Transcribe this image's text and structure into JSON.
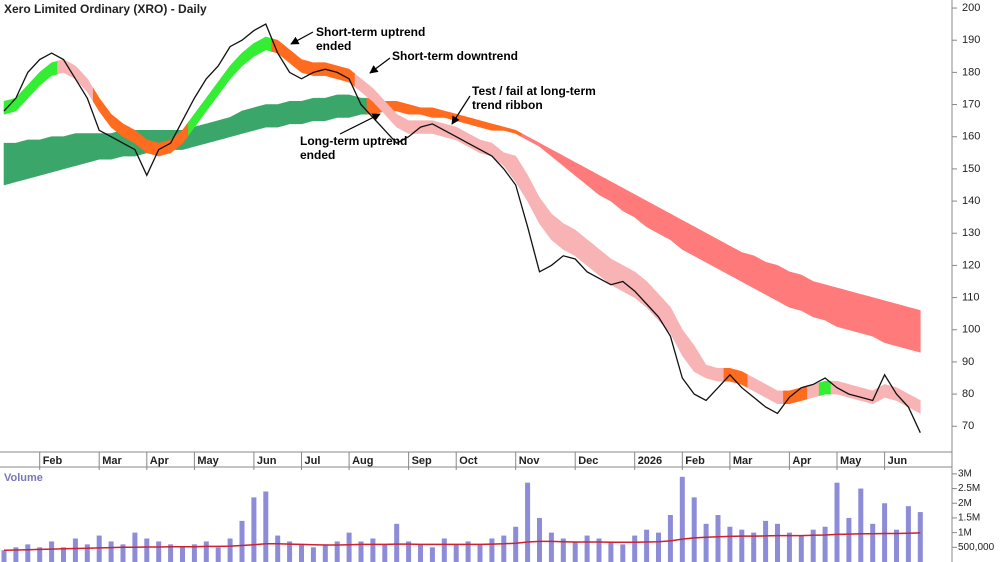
{
  "chart_data": {
    "type": "line",
    "title": "Xero Limited Ordinary (XRO) - Daily",
    "categories": [
      null,
      null,
      null,
      "Feb",
      null,
      null,
      null,
      null,
      "Mar",
      null,
      null,
      null,
      "Apr",
      null,
      null,
      null,
      "May",
      null,
      null,
      null,
      null,
      "Jun",
      null,
      null,
      null,
      "Jul",
      null,
      null,
      null,
      "Aug",
      null,
      null,
      null,
      null,
      "Sep",
      null,
      null,
      null,
      "Oct",
      null,
      null,
      null,
      null,
      "Nov",
      null,
      null,
      null,
      null,
      "Dec",
      null,
      null,
      null,
      null,
      "2026",
      null,
      null,
      null,
      "Feb",
      null,
      null,
      null,
      "Mar",
      null,
      null,
      null,
      null,
      "Apr",
      null,
      null,
      null,
      "May",
      null,
      null,
      null,
      "Jun",
      null,
      null,
      null
    ],
    "price": {
      "color": "#111111",
      "values": [
        168,
        172,
        180,
        184,
        186,
        184,
        178,
        172,
        162,
        160,
        158,
        156,
        148,
        156,
        158,
        165,
        172,
        178,
        182,
        188,
        190,
        193,
        195,
        186,
        180,
        178,
        180,
        181,
        180,
        178,
        170,
        166,
        162,
        158,
        160,
        163,
        164,
        162,
        160,
        158,
        156,
        154,
        150,
        145,
        132,
        118,
        120,
        123,
        122,
        118,
        116,
        114,
        115,
        112,
        108,
        104,
        98,
        85,
        80,
        78,
        82,
        86,
        82,
        79,
        76,
        74,
        79,
        82,
        83,
        85,
        82,
        80,
        79,
        78,
        86,
        80,
        76,
        68
      ]
    },
    "ribbons": [
      {
        "upper": [
          158,
          158,
          159,
          159,
          160,
          160,
          161,
          161,
          161,
          161,
          162,
          162,
          162,
          162,
          162,
          162,
          163,
          164,
          165,
          166,
          168,
          169,
          170,
          170,
          171,
          171,
          172,
          172,
          173,
          173,
          172,
          172,
          171,
          171,
          170,
          169,
          169,
          168,
          167,
          166,
          165,
          164,
          163,
          162,
          160,
          158,
          156,
          154,
          152,
          150,
          148,
          146,
          144,
          142,
          140,
          138,
          136,
          134,
          132,
          130,
          128,
          126,
          124,
          123,
          121,
          120,
          118,
          117,
          115,
          114,
          113,
          112,
          111,
          110,
          109,
          108,
          107,
          106
        ],
        "lower": [
          145,
          146,
          147,
          148,
          149,
          150,
          151,
          152,
          153,
          153,
          154,
          154,
          155,
          155,
          156,
          156,
          157,
          158,
          159,
          160,
          161,
          162,
          163,
          163,
          164,
          164,
          165,
          165,
          166,
          166,
          167,
          167,
          168,
          168,
          167,
          167,
          166,
          166,
          165,
          164,
          163,
          162,
          162,
          161,
          159,
          157,
          154,
          151,
          148,
          145,
          142,
          140,
          137,
          135,
          132,
          130,
          128,
          125,
          123,
          121,
          119,
          117,
          115,
          113,
          111,
          109,
          107,
          106,
          104,
          103,
          101,
          100,
          99,
          98,
          96,
          95,
          94,
          93
        ],
        "colors": [
          "#3aa66a",
          "#3aa66a",
          "#3aa66a",
          "#3aa66a",
          "#3aa66a",
          "#3aa66a",
          "#3aa66a",
          "#3aa66a",
          "#3aa66a",
          "#3aa66a",
          "#3aa66a",
          "#3aa66a",
          "#3aa66a",
          "#3aa66a",
          "#3aa66a",
          "#3aa66a",
          "#3aa66a",
          "#3aa66a",
          "#3aa66a",
          "#3aa66a",
          "#3aa66a",
          "#3aa66a",
          "#3aa66a",
          "#3aa66a",
          "#3aa66a",
          "#3aa66a",
          "#3aa66a",
          "#3aa66a",
          "#3aa66a",
          "#3aa66a",
          "#3aa66a",
          "#ff6b1f",
          "#ff6b1f",
          "#ff6b1f",
          "#ff6b1f",
          "#ff6b1f",
          "#ff6b1f",
          "#ff6b1f",
          "#ff6b1f",
          "#ff6b1f",
          "#ff6b1f",
          "#ff6b1f",
          "#ff6b1f",
          "#ff6b1f",
          "#ff7b7b",
          "#ff7b7b",
          "#ff7b7b",
          "#ff7b7b",
          "#ff7b7b",
          "#ff7b7b",
          "#ff7b7b",
          "#ff7b7b",
          "#ff7b7b",
          "#ff7b7b",
          "#ff7b7b",
          "#ff7b7b",
          "#ff7b7b",
          "#ff7b7b",
          "#ff7b7b",
          "#ff7b7b",
          "#ff7b7b",
          "#ff7b7b",
          "#ff7b7b",
          "#ff7b7b",
          "#ff7b7b",
          "#ff7b7b",
          "#ff7b7b",
          "#ff7b7b",
          "#ff7b7b",
          "#ff7b7b",
          "#ff7b7b",
          "#ff7b7b",
          "#ff7b7b",
          "#ff7b7b",
          "#ff7b7b",
          "#ff7b7b",
          "#ff7b7b",
          "#ff7b7b"
        ]
      },
      {
        "upper": [
          171,
          172,
          176,
          180,
          183,
          184,
          182,
          178,
          172,
          167,
          164,
          162,
          159,
          158,
          159,
          162,
          167,
          172,
          177,
          182,
          186,
          189,
          191,
          190,
          187,
          184,
          183,
          183,
          182,
          181,
          178,
          175,
          171,
          167,
          165,
          165,
          165,
          164,
          163,
          161,
          159,
          158,
          155,
          154,
          148,
          141,
          136,
          133,
          131,
          128,
          125,
          122,
          120,
          118,
          115,
          111,
          107,
          100,
          95,
          89,
          88,
          88,
          87,
          85,
          83,
          81,
          81,
          82,
          83,
          84,
          84,
          83,
          82,
          81,
          83,
          82,
          80,
          78
        ],
        "lower": [
          167,
          168,
          172,
          176,
          179,
          180,
          178,
          174,
          168,
          163,
          160,
          158,
          155,
          154,
          155,
          158,
          163,
          168,
          173,
          178,
          182,
          185,
          187,
          186,
          183,
          180,
          179,
          179,
          178,
          177,
          174,
          171,
          167,
          163,
          161,
          161,
          161,
          160,
          159,
          157,
          155,
          154,
          151,
          146,
          140,
          133,
          128,
          125,
          123,
          120,
          117,
          114,
          112,
          110,
          107,
          103,
          99,
          92,
          87,
          85,
          84,
          84,
          83,
          81,
          79,
          77,
          77,
          78,
          79,
          80,
          80,
          79,
          78,
          77,
          79,
          78,
          76,
          74
        ],
        "colors": [
          "#33ee33",
          "#33ee33",
          "#33ee33",
          "#33ee33",
          "#33ee33",
          "#f8b4b4",
          "#f8b4b4",
          "#f8b4b4",
          "#ff6b1f",
          "#ff6b1f",
          "#ff6b1f",
          "#ff6b1f",
          "#ff6b1f",
          "#ff6b1f",
          "#ff6b1f",
          "#ff6b1f",
          "#33ee33",
          "#33ee33",
          "#33ee33",
          "#33ee33",
          "#33ee33",
          "#33ee33",
          "#33ee33",
          "#ff6b1f",
          "#ff6b1f",
          "#ff6b1f",
          "#ff6b1f",
          "#ff6b1f",
          "#ff6b1f",
          "#ff6b1f",
          "#f8b4b4",
          "#f8b4b4",
          "#f8b4b4",
          "#f8b4b4",
          "#f8b4b4",
          "#f8b4b4",
          "#f8b4b4",
          "#f8b4b4",
          "#f8b4b4",
          "#f8b4b4",
          "#f8b4b4",
          "#f8b4b4",
          "#f8b4b4",
          "#f8b4b4",
          "#f8b4b4",
          "#f8b4b4",
          "#f8b4b4",
          "#f8b4b4",
          "#f8b4b4",
          "#f8b4b4",
          "#f8b4b4",
          "#f8b4b4",
          "#f8b4b4",
          "#f8b4b4",
          "#f8b4b4",
          "#f8b4b4",
          "#f8b4b4",
          "#f8b4b4",
          "#f8b4b4",
          "#f8b4b4",
          "#f8b4b4",
          "#ff6b1f",
          "#ff6b1f",
          "#f8b4b4",
          "#f8b4b4",
          "#f8b4b4",
          "#ff6b1f",
          "#ff6b1f",
          "#f8b4b4",
          "#33ee33",
          "#f8b4b4",
          "#f8b4b4",
          "#f8b4b4",
          "#f8b4b4",
          "#f8b4b4",
          "#f8b4b4",
          "#f8b4b4",
          "#f8b4b4"
        ]
      }
    ],
    "ylim": [
      62,
      202.5
    ],
    "yticks": [
      70,
      80,
      90,
      100,
      110,
      120,
      130,
      140,
      150,
      160,
      170,
      180,
      190,
      200
    ],
    "volume": {
      "label": "Volume",
      "color": "#8c8cd8",
      "values": [
        400000,
        500000,
        600000,
        500000,
        700000,
        500000,
        800000,
        600000,
        900000,
        700000,
        600000,
        1000000,
        800000,
        700000,
        600000,
        500000,
        600000,
        700000,
        500000,
        800000,
        1400000,
        2200000,
        2400000,
        900000,
        700000,
        600000,
        500000,
        600000,
        700000,
        1000000,
        700000,
        800000,
        600000,
        1300000,
        700000,
        600000,
        500000,
        800000,
        600000,
        700000,
        600000,
        800000,
        900000,
        1200000,
        2700000,
        1500000,
        1000000,
        800000,
        700000,
        900000,
        800000,
        700000,
        600000,
        900000,
        1100000,
        1000000,
        1600000,
        2900000,
        2200000,
        1300000,
        1600000,
        1200000,
        1100000,
        1000000,
        1400000,
        1300000,
        1000000,
        900000,
        1100000,
        1200000,
        2700000,
        1500000,
        2500000,
        1300000,
        2000000,
        1100000,
        1900000,
        1700000
      ],
      "average": {
        "color": "#cc2233",
        "values": [
          400000,
          410000,
          420000,
          430000,
          440000,
          450000,
          460000,
          470000,
          480000,
          490000,
          500000,
          500000,
          510000,
          510000,
          520000,
          520000,
          520000,
          530000,
          530000,
          540000,
          560000,
          590000,
          620000,
          620000,
          610000,
          600000,
          590000,
          580000,
          580000,
          590000,
          600000,
          600000,
          600000,
          610000,
          610000,
          600000,
          600000,
          600000,
          600000,
          600000,
          600000,
          610000,
          620000,
          640000,
          680000,
          700000,
          700000,
          690000,
          680000,
          680000,
          680000,
          670000,
          670000,
          670000,
          680000,
          690000,
          720000,
          780000,
          820000,
          840000,
          860000,
          870000,
          880000,
          880000,
          890000,
          900000,
          900000,
          900000,
          910000,
          920000,
          940000,
          950000,
          960000,
          960000,
          970000,
          970000,
          980000,
          990000
        ]
      },
      "ylim": [
        0,
        3200000
      ],
      "yticks": [
        {
          "value": 500000,
          "label": "500,000"
        },
        {
          "value": 1000000,
          "label": "1M"
        },
        {
          "value": 1500000,
          "label": "1.5M"
        },
        {
          "value": 2000000,
          "label": "2M"
        },
        {
          "value": 2500000,
          "label": "2.5M"
        },
        {
          "value": 3000000,
          "label": "3M"
        }
      ]
    },
    "annotations": [
      {
        "text": [
          "Short-term uptrend",
          "ended"
        ]
      },
      {
        "text": [
          "Short-term downtrend"
        ]
      },
      {
        "text": [
          "Test / fail at long-term",
          "trend ribbon"
        ]
      },
      {
        "text": [
          "Long-term uptrend",
          "ended"
        ]
      }
    ]
  }
}
